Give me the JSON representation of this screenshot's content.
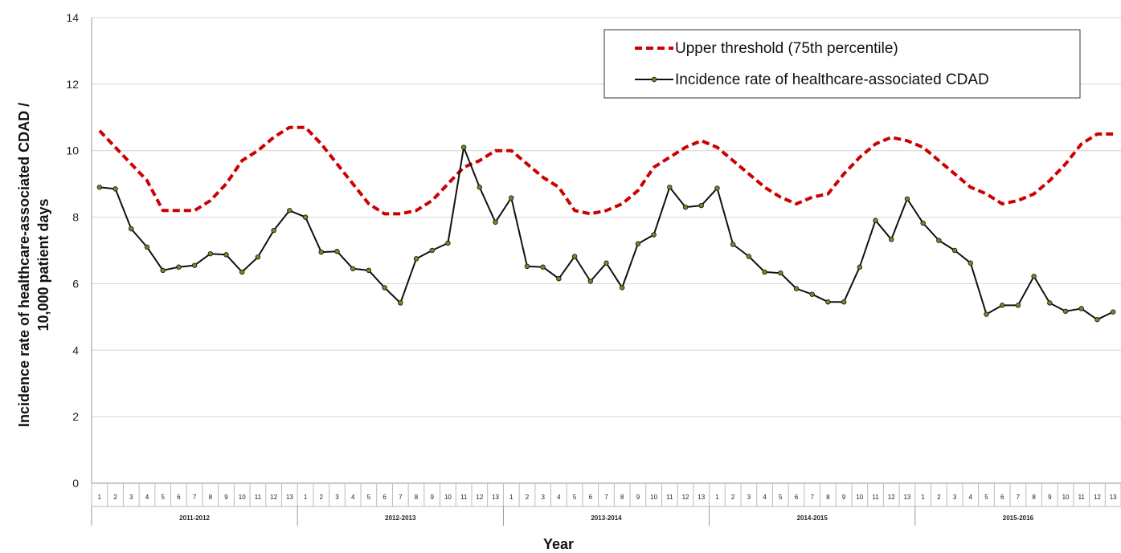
{
  "chart_data": {
    "type": "line",
    "ylabel_line1": "Incidence rate of healthcare-associated CDAD /",
    "ylabel_line2": "10,000 patient days",
    "xlabel": "Year",
    "ylim": [
      0,
      14
    ],
    "yticks": [
      "0",
      "2",
      "4",
      "6",
      "8",
      "10",
      "12",
      "14"
    ],
    "grid": "horizontal",
    "legend_position": "top-right",
    "periods": [
      "1",
      "2",
      "3",
      "4",
      "5",
      "6",
      "7",
      "8",
      "9",
      "10",
      "11",
      "12",
      "13"
    ],
    "years": [
      "2011-2012",
      "2012-2013",
      "2013-2014",
      "2014-2015",
      "2015-2016"
    ],
    "series": [
      {
        "name": "Upper threshold (75th percentile)",
        "color": "#cc0000",
        "style": "dashed",
        "values": [
          10.6,
          10.1,
          9.6,
          9.1,
          8.2,
          8.2,
          8.2,
          8.5,
          9.0,
          9.7,
          10.0,
          10.4,
          10.7,
          10.7,
          10.2,
          9.6,
          9.0,
          8.4,
          8.1,
          8.1,
          8.2,
          8.5,
          9.0,
          9.5,
          9.7,
          10.0,
          10.0,
          9.6,
          9.2,
          8.9,
          8.2,
          8.1,
          8.2,
          8.4,
          8.8,
          9.5,
          9.8,
          10.1,
          10.3,
          10.1,
          9.7,
          9.3,
          8.9,
          8.6,
          8.4,
          8.6,
          8.7,
          9.3,
          9.8,
          10.2,
          10.4,
          10.3,
          10.1,
          9.7,
          9.3,
          8.9,
          8.7,
          8.4,
          8.5,
          8.7,
          9.1,
          9.6,
          10.2,
          10.5,
          10.5
        ]
      },
      {
        "name": "Incidence rate of healthcare-associated CDAD",
        "color": "#111111",
        "marker_color": "#6b8e23",
        "style": "solid",
        "values": [
          8.9,
          8.85,
          7.65,
          7.1,
          6.4,
          6.5,
          6.55,
          6.9,
          6.87,
          6.35,
          6.8,
          7.6,
          8.2,
          8.0,
          6.95,
          6.97,
          6.45,
          6.4,
          5.88,
          5.42,
          6.75,
          7.0,
          7.22,
          10.1,
          8.9,
          7.85,
          8.58,
          6.52,
          6.5,
          6.15,
          6.82,
          6.07,
          6.62,
          5.88,
          7.2,
          7.47,
          8.9,
          8.3,
          8.35,
          8.87,
          7.18,
          6.82,
          6.35,
          6.32,
          5.85,
          5.68,
          5.45,
          5.45,
          6.5,
          7.9,
          7.33,
          8.55,
          7.82,
          7.3,
          7.0,
          6.62,
          5.08,
          5.35,
          5.35,
          6.22,
          5.42,
          5.17,
          5.25,
          4.92,
          5.15
        ]
      }
    ]
  }
}
